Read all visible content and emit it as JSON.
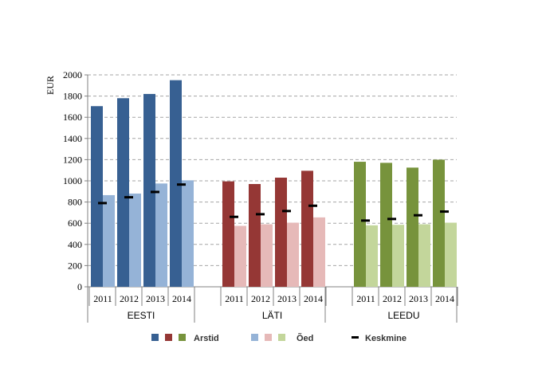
{
  "chart_data": {
    "type": "bar",
    "ylabel": "EUR",
    "ylim": [
      0,
      2000
    ],
    "yticks": [
      0,
      200,
      400,
      600,
      800,
      1000,
      1200,
      1400,
      1600,
      1800,
      2000
    ],
    "grid": true,
    "legend_position": "bottom",
    "groups": [
      {
        "name": "EESTI",
        "years": [
          "2011",
          "2012",
          "2013",
          "2014"
        ],
        "arstid": [
          1705,
          1780,
          1820,
          1950
        ],
        "oed": [
          865,
          880,
          975,
          1005
        ],
        "keskmine": [
          790,
          845,
          895,
          965
        ],
        "colors": {
          "arstid": "#376092",
          "oed": "#95B3D7"
        }
      },
      {
        "name": "LÄTI",
        "years": [
          "2011",
          "2012",
          "2013",
          "2014"
        ],
        "arstid": [
          995,
          970,
          1030,
          1095
        ],
        "oed": [
          575,
          590,
          605,
          655
        ],
        "keskmine": [
          660,
          685,
          715,
          765
        ],
        "colors": {
          "arstid": "#953735",
          "oed": "#E6B9B8"
        }
      },
      {
        "name": "LEEDU",
        "years": [
          "2011",
          "2012",
          "2013",
          "2014"
        ],
        "arstid": [
          1180,
          1170,
          1125,
          1200
        ],
        "oed": [
          580,
          585,
          590,
          605
        ],
        "keskmine": [
          625,
          640,
          675,
          710
        ],
        "colors": {
          "arstid": "#77933C",
          "oed": "#C3D69B"
        }
      }
    ],
    "legend": {
      "arstid": "Arstid",
      "oed": "Õed",
      "keskmine": "Keskmine"
    }
  }
}
